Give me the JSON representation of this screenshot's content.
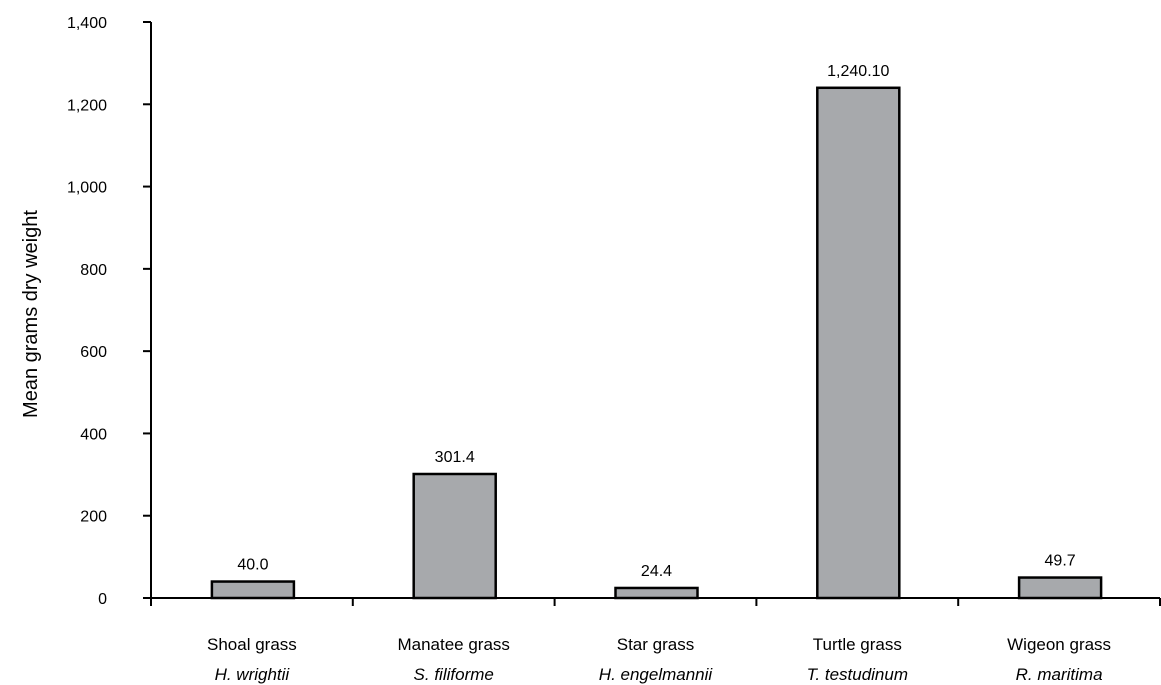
{
  "chart_data": {
    "type": "bar",
    "title": "",
    "xlabel": "",
    "ylabel": "Mean grams dry weight",
    "ylim": [
      0,
      1400
    ],
    "yticks": [
      0,
      200,
      400,
      600,
      800,
      1000,
      1200,
      1400
    ],
    "ytick_labels": [
      "0",
      "200",
      "400",
      "600",
      "800",
      "1,000",
      "1,200",
      "1,400"
    ],
    "categories": [
      {
        "common": "Shoal grass",
        "scientific": "H. wrightii"
      },
      {
        "common": "Manatee grass",
        "scientific": "S. filiforme"
      },
      {
        "common": "Star grass",
        "scientific": "H. engelmannii"
      },
      {
        "common": "Turtle grass",
        "scientific": "T. testudinum"
      },
      {
        "common": "Wigeon grass",
        "scientific": "R. maritima"
      }
    ],
    "values": [
      40.0,
      301.4,
      24.4,
      1240.1,
      49.7
    ],
    "data_labels": [
      "40.0",
      "301.4",
      "24.4",
      "1,240.10",
      "49.7"
    ],
    "bar_color": "#a7a9ac",
    "grid": false,
    "legend": "none"
  }
}
